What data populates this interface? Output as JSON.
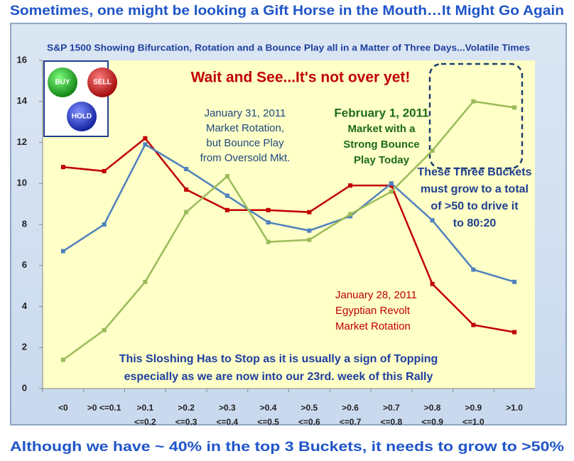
{
  "page_title": "Sometimes, one might be looking a Gift Horse in the Mouth…It Might Go Again",
  "page_footer": "Although we have ~ 40% in the top 3 Buckets, it needs to grow to >50%",
  "chart_data": {
    "type": "line",
    "title": "S&P 1500 Showing Bifurcation, Rotation and a Bounce Play all in a Matter of Three Days...Volatile Times",
    "categories": [
      [
        "<0"
      ],
      [
        ">0 <=0.1"
      ],
      [
        ">0.1",
        "<=0.2"
      ],
      [
        ">0.2",
        "<=0.3"
      ],
      [
        ">0.3",
        "<=0.4"
      ],
      [
        ">0.4",
        "<=0.5"
      ],
      [
        ">0.5",
        "<=0.6"
      ],
      [
        ">0.6",
        "<=0.7"
      ],
      [
        ">0.7",
        "<=0.8"
      ],
      [
        ">0.8",
        "<=0.9"
      ],
      [
        ">0.9",
        "<=1.0"
      ],
      [
        ">1.0"
      ]
    ],
    "series": [
      {
        "color": "#c00000",
        "values": [
          10.8,
          10.6,
          12.2,
          9.7,
          8.7,
          8.7,
          8.6,
          9.9,
          9.9,
          5.1,
          3.1,
          2.75
        ]
      },
      {
        "color": "#4f81bd",
        "values": [
          6.7,
          8.0,
          11.9,
          10.7,
          9.4,
          8.1,
          7.7,
          8.4,
          10.0,
          8.2,
          5.8,
          5.2
        ]
      },
      {
        "color": "#9bbb59",
        "values": [
          1.4,
          2.85,
          5.2,
          8.6,
          10.35,
          7.15,
          7.25,
          8.5,
          9.6,
          11.6,
          14.0,
          13.7
        ]
      }
    ],
    "ylim": [
      0,
      16
    ],
    "yticks": [
      0,
      2,
      4,
      6,
      8,
      10,
      12,
      14,
      16
    ],
    "grid": false,
    "annotations": [
      {
        "lines": [
          "Wait and See...It's not over yet!"
        ],
        "color": "#c00000"
      },
      {
        "lines": [
          "January 31, 2011",
          "Market Rotation,",
          "but Bounce Play",
          "from Oversold Mkt."
        ],
        "color": "#1f497d"
      },
      {
        "lines": [
          "February 1, 2011",
          "Market with a",
          "Strong Bounce",
          "Play Today"
        ],
        "color": "#1d6b1d"
      },
      {
        "lines": [
          "These Three Buckets",
          "must grow to a total",
          "of >50 to drive it",
          "to 80:20"
        ],
        "color": "#1f3f8f"
      },
      {
        "lines": [
          "January 28, 2011",
          "Egyptian Revolt",
          "Market Rotation"
        ],
        "color": "#c00000"
      },
      {
        "lines": [
          "This Sloshing Has to Stop as it is usually a sign of Topping",
          "especially as we are now into our 23rd. week of this Rally"
        ],
        "color": "#1f3f9f"
      }
    ],
    "icon_labels": [
      "BUY",
      "SELL",
      "HOLD"
    ]
  }
}
